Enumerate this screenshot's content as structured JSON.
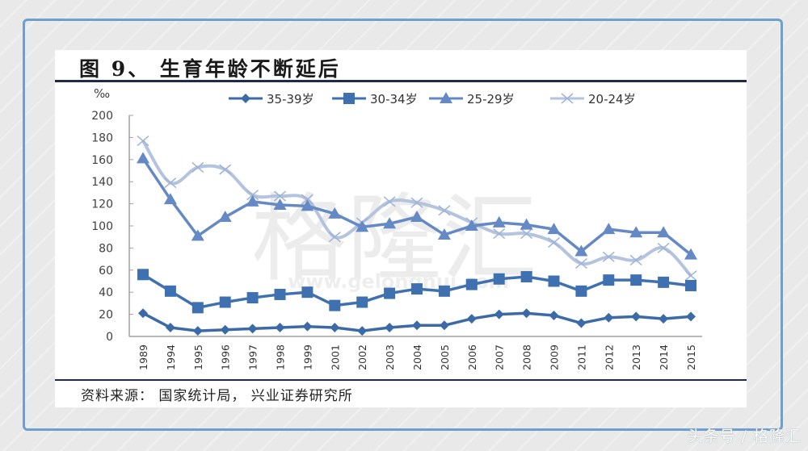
{
  "page": {
    "title": "图 9、 生育年龄不断延后",
    "source": "资料来源： 国家统计局， 兴业证券研究所",
    "watermark_text": "格隆汇",
    "watermark_url": "www.gelonghui.com",
    "footer_mark": "头条号 / 格隆汇"
  },
  "colors": {
    "frame": "#6e9fd0",
    "series_35_39": "#3c6aa6",
    "series_30_34": "#3f70b0",
    "series_25_29": "#6489c4",
    "series_20_24": "#b4c3de",
    "axis": "#a0a0a0",
    "text": "#404040"
  },
  "chart_data": {
    "type": "line",
    "title": "图 9、 生育年龄不断延后",
    "ylabel": "‰",
    "xlabel": "",
    "ylim": [
      0,
      200
    ],
    "yticks": [
      0,
      20,
      40,
      60,
      80,
      100,
      120,
      140,
      160,
      180,
      200
    ],
    "grid": false,
    "legend_position": "top",
    "categories": [
      "1989",
      "1994",
      "1995",
      "1996",
      "1997",
      "1998",
      "1999",
      "2001",
      "2002",
      "2003",
      "2004",
      "2005",
      "2006",
      "2007",
      "2008",
      "2009",
      "2011",
      "2012",
      "2013",
      "2014",
      "2015"
    ],
    "series": [
      {
        "name": "35-39岁",
        "marker": "diamond",
        "smooth": false,
        "values": [
          21,
          8,
          5,
          6,
          7,
          8,
          9,
          8,
          5,
          8,
          10,
          10,
          16,
          20,
          21,
          19,
          12,
          17,
          18,
          16,
          18
        ]
      },
      {
        "name": "30-34岁",
        "marker": "square",
        "smooth": false,
        "values": [
          56,
          41,
          26,
          31,
          35,
          38,
          40,
          28,
          31,
          39,
          43,
          41,
          47,
          52,
          54,
          50,
          41,
          51,
          51,
          49,
          46
        ]
      },
      {
        "name": "25-29岁",
        "marker": "triangle",
        "smooth": false,
        "values": [
          161,
          124,
          91,
          108,
          122,
          119,
          118,
          111,
          99,
          102,
          108,
          92,
          100,
          103,
          101,
          97,
          77,
          97,
          94,
          94,
          74
        ]
      },
      {
        "name": "20-24岁",
        "marker": "x",
        "smooth": true,
        "values": [
          177,
          139,
          153,
          151,
          128,
          127,
          124,
          90,
          103,
          122,
          121,
          114,
          103,
          93,
          93,
          85,
          66,
          72,
          69,
          80,
          55
        ]
      }
    ]
  }
}
